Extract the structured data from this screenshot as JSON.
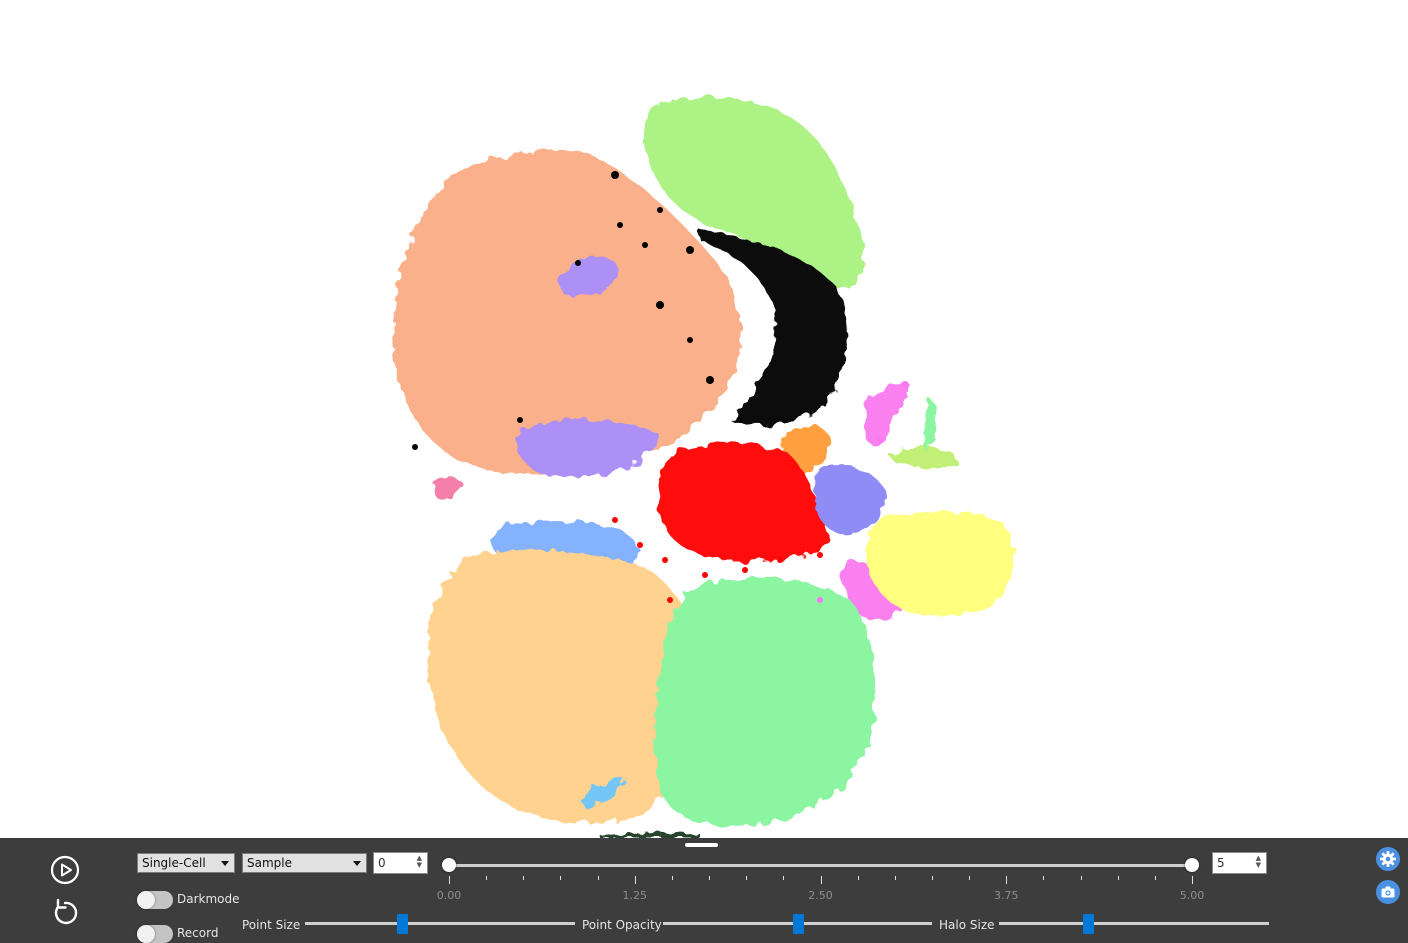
{
  "visualization": {
    "background": "#ffffff",
    "cluster_colors": [
      "#f9ac85",
      "#a8f27e",
      "#000000",
      "#ff0000",
      "#ffd08a",
      "#86f59e",
      "#ffff7a",
      "#7eaeff",
      "#a98bf5",
      "#fa7af0",
      "#ff9a35",
      "#f47aa6",
      "#bff070"
    ]
  },
  "controls": {
    "play_icon": "play-circle-icon",
    "reset_icon": "reset-icon",
    "mode_select": {
      "value": "Single-Cell"
    },
    "color_by_select": {
      "value": "Sample"
    },
    "range_min": "0",
    "range_max": "5",
    "range_low_value": 0,
    "range_high_value": 5,
    "tick_labels": [
      "0.00",
      "1.25",
      "2.50",
      "3.75",
      "5.00"
    ],
    "darkmode_label": "Darkmode",
    "darkmode_on": false,
    "record_label": "Record",
    "record_on": false,
    "point_size_label": "Point Size",
    "point_size_level": 0.36,
    "point_opacity_label": "Point Opacity",
    "point_opacity_level": 0.5,
    "halo_size_label": "Halo Size",
    "halo_size_level": 0.33,
    "settings_icon": "gear-icon",
    "screenshot_icon": "camera-icon",
    "accent_color": "#0078d7"
  }
}
